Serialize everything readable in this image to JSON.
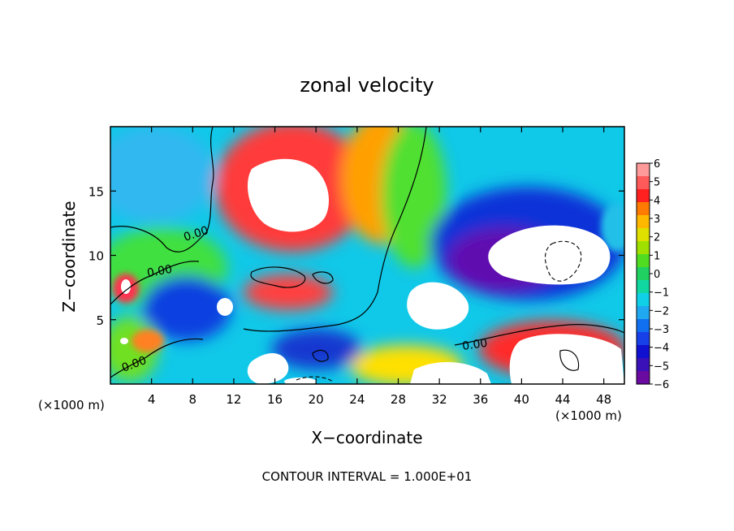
{
  "chart_data": {
    "type": "heatmap",
    "title": "zonal velocity",
    "xlabel": "X−coordinate",
    "ylabel": "Z−coordinate",
    "x_unit_left": "(×1000 m)",
    "x_unit_right": "(×1000 m)",
    "xlim": [
      0,
      50
    ],
    "ylim": [
      0,
      20
    ],
    "x_ticks": [
      "4",
      "8",
      "12",
      "16",
      "20",
      "24",
      "28",
      "32",
      "36",
      "40",
      "44",
      "48"
    ],
    "y_ticks": [
      "5",
      "10",
      "15"
    ],
    "colorbar": {
      "range": [
        -6,
        6
      ],
      "labels": [
        "6",
        "5",
        "4",
        "3",
        "2",
        "1",
        "0",
        "−1",
        "−2",
        "−3",
        "−4",
        "−5",
        "−6"
      ]
    },
    "contour_labels": [
      "0.00",
      "0.00",
      "0.00",
      "0.00"
    ],
    "contour_interval_text": "CONTOUR INTERVAL = 1.000E+01"
  }
}
